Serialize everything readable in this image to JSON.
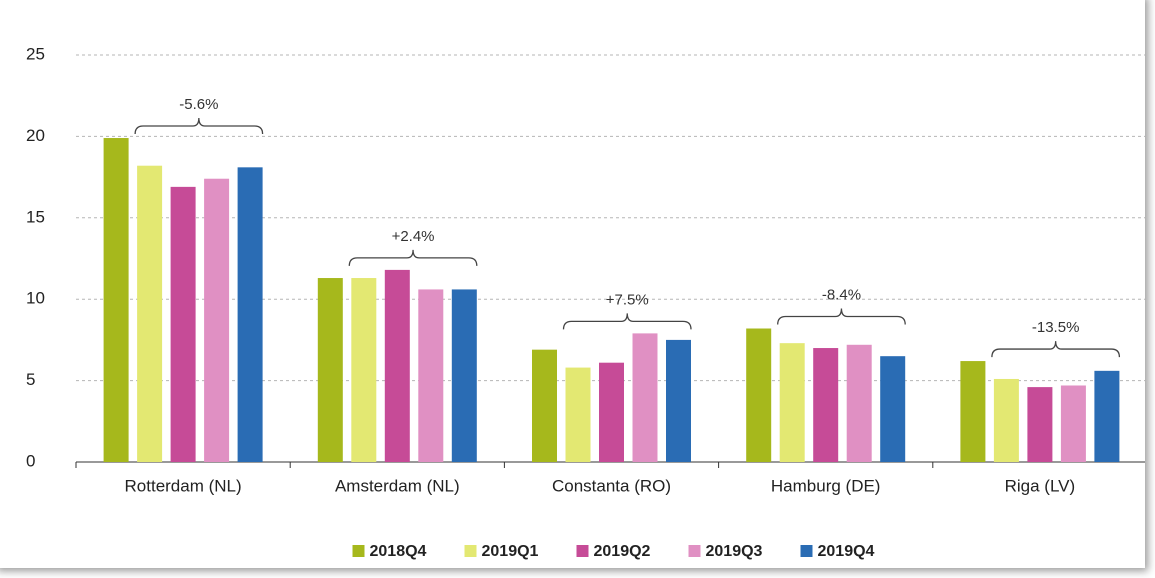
{
  "chart_data": {
    "type": "bar",
    "categories": [
      "Rotterdam (NL)",
      "Amsterdam (NL)",
      "Constanta (RO)",
      "Hamburg (DE)",
      "Riga (LV)"
    ],
    "series": [
      {
        "name": "2018Q4",
        "color": "#a6b81c",
        "values": [
          19.9,
          11.3,
          6.9,
          8.2,
          6.2
        ]
      },
      {
        "name": "2019Q1",
        "color": "#e3e872",
        "values": [
          18.2,
          11.3,
          5.8,
          7.3,
          5.1
        ]
      },
      {
        "name": "2019Q2",
        "color": "#c64b97",
        "values": [
          16.9,
          11.8,
          6.1,
          7.0,
          4.6
        ]
      },
      {
        "name": "2019Q3",
        "color": "#e090c3",
        "values": [
          17.4,
          10.6,
          7.9,
          7.2,
          4.7
        ]
      },
      {
        "name": "2019Q4",
        "color": "#2a6cb4",
        "values": [
          18.1,
          10.6,
          7.5,
          6.5,
          5.6
        ]
      }
    ],
    "annotations": [
      "-5.6%",
      "+2.4%",
      "+7.5%",
      "-8.4%",
      "-13.5%"
    ],
    "ylim": [
      0,
      25
    ],
    "yticks": [
      0,
      5,
      10,
      15,
      20,
      25
    ],
    "grid": true,
    "legend": "bottom"
  }
}
